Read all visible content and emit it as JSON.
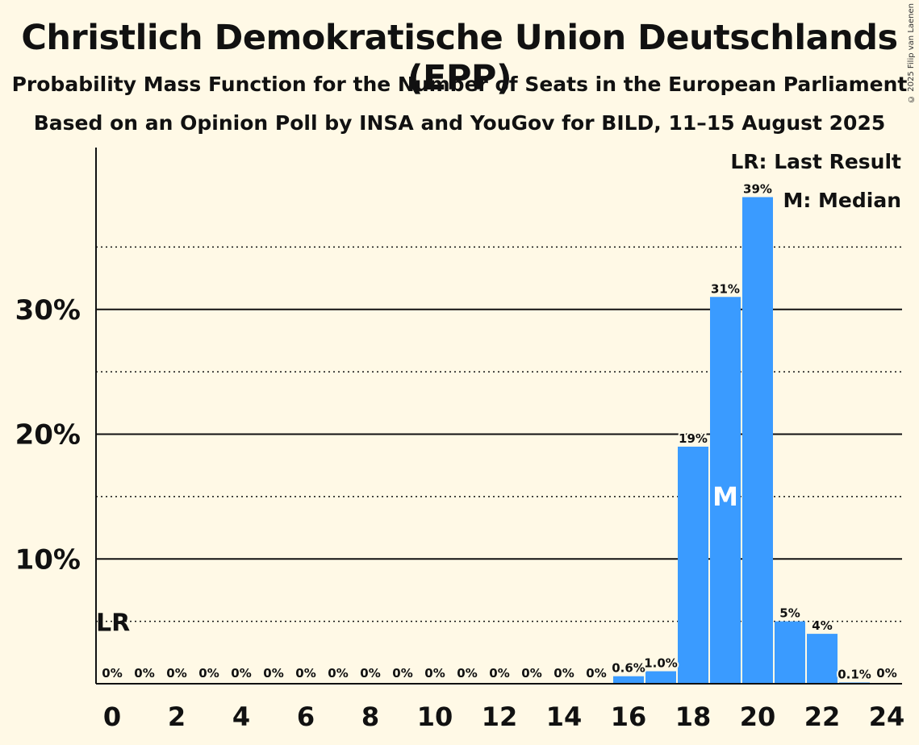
{
  "title": "Christlich Demokratische Union Deutschlands (EPP)",
  "subtitle_1": "Probability Mass Function for the Number of Seats in the European Parliament",
  "subtitle_2": "Based on an Opinion Poll by INSA and YouGov for BILD, 11–15 August 2025",
  "copyright": "© 2025 Filip van Laenen",
  "legend": {
    "last_result": "LR: Last Result",
    "median": "M: Median"
  },
  "markers": {
    "last_result_label": "LR",
    "last_result_seat": 0,
    "median_label": "M",
    "median_seat": 19
  },
  "colors": {
    "bar": "#3a9bff",
    "background": "#fff9e6",
    "text": "#111111"
  },
  "chart_data": {
    "type": "bar",
    "categories": [
      0,
      1,
      2,
      3,
      4,
      5,
      6,
      7,
      8,
      9,
      10,
      11,
      12,
      13,
      14,
      15,
      16,
      17,
      18,
      19,
      20,
      21,
      22,
      23,
      24
    ],
    "values": [
      0,
      0,
      0,
      0,
      0,
      0,
      0,
      0,
      0,
      0,
      0,
      0,
      0,
      0,
      0,
      0,
      0.6,
      1.0,
      19,
      31,
      39,
      5,
      4,
      0.1,
      0
    ],
    "value_labels": [
      "0%",
      "0%",
      "0%",
      "0%",
      "0%",
      "0%",
      "0%",
      "0%",
      "0%",
      "0%",
      "0%",
      "0%",
      "0%",
      "0%",
      "0%",
      "0%",
      "0.6%",
      "1.0%",
      "19%",
      "31%",
      "39%",
      "5%",
      "4%",
      "0.1%",
      "0%"
    ],
    "x_tick_labels": [
      "0",
      "2",
      "4",
      "6",
      "8",
      "10",
      "12",
      "14",
      "16",
      "18",
      "20",
      "22",
      "24"
    ],
    "x_tick_values": [
      0,
      2,
      4,
      6,
      8,
      10,
      12,
      14,
      16,
      18,
      20,
      22,
      24
    ],
    "y_tick_labels": [
      "10%",
      "20%",
      "30%"
    ],
    "y_tick_values": [
      10,
      20,
      30
    ],
    "y_minor_gridlines": [
      5,
      15,
      25,
      35
    ],
    "ylim": [
      0,
      43
    ],
    "xlabel": "",
    "ylabel": "",
    "grid": true,
    "legend_position": "top-right"
  }
}
